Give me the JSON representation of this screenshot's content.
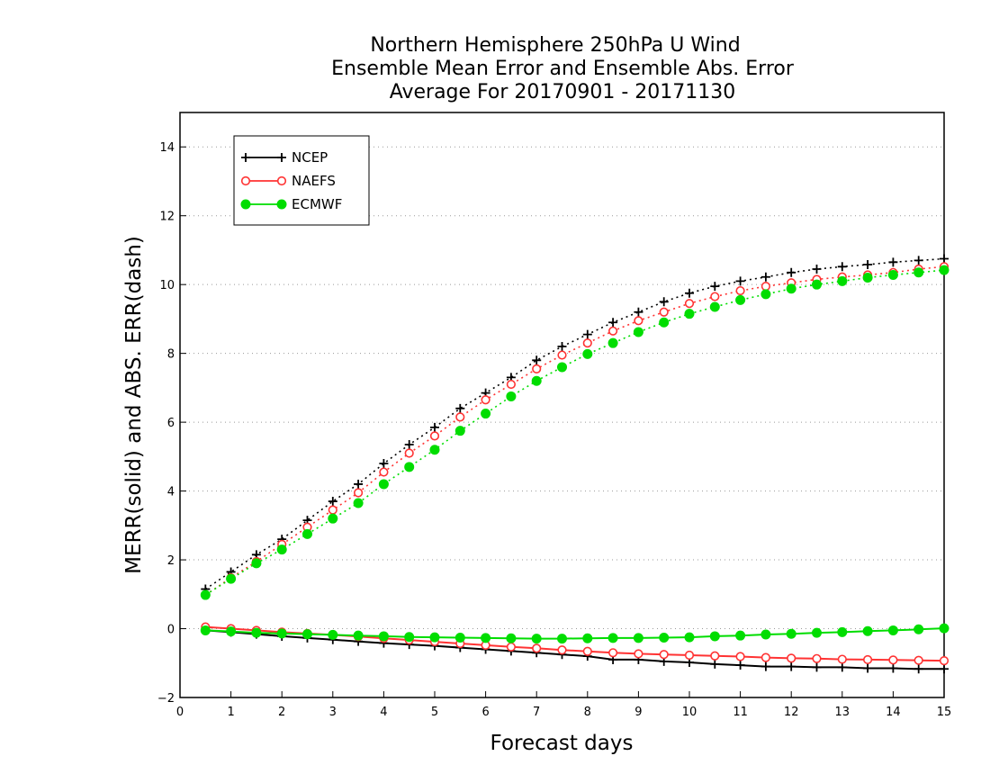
{
  "chart_data": {
    "type": "line",
    "title_lines": [
      "Northern Hemisphere 250hPa U Wind",
      "Ensemble Mean Error and Ensemble Abs. Error",
      "Average For 20170901 - 20171130"
    ],
    "xlabel": "Forecast days",
    "ylabel": "MERR(solid) and ABS. ERR(dash)",
    "xlim": [
      0,
      15
    ],
    "ylim": [
      -2,
      15
    ],
    "xticks": [
      0,
      1,
      2,
      3,
      4,
      5,
      6,
      7,
      8,
      9,
      10,
      11,
      12,
      13,
      14,
      15
    ],
    "yticks": [
      -2,
      0,
      2,
      4,
      6,
      8,
      10,
      12,
      14
    ],
    "grid": "horizontal dotted",
    "legend_placement": "top-left",
    "x": [
      0.5,
      1,
      1.5,
      2,
      2.5,
      3,
      3.5,
      4,
      4.5,
      5,
      5.5,
      6,
      6.5,
      7,
      7.5,
      8,
      8.5,
      9,
      9.5,
      10,
      10.5,
      11,
      11.5,
      12,
      12.5,
      13,
      13.5,
      14,
      14.5,
      15
    ],
    "series": [
      {
        "name": "NCEP",
        "color": "#000000",
        "marker": "plus",
        "merr": [
          -0.05,
          -0.1,
          -0.16,
          -0.22,
          -0.27,
          -0.32,
          -0.37,
          -0.42,
          -0.46,
          -0.5,
          -0.55,
          -0.6,
          -0.65,
          -0.7,
          -0.75,
          -0.8,
          -0.9,
          -0.9,
          -0.95,
          -0.98,
          -1.03,
          -1.06,
          -1.1,
          -1.1,
          -1.12,
          -1.12,
          -1.15,
          -1.15,
          -1.17,
          -1.17
        ],
        "abs_err": [
          1.15,
          1.65,
          2.15,
          2.6,
          3.15,
          3.7,
          4.2,
          4.8,
          5.35,
          5.85,
          6.4,
          6.85,
          7.3,
          7.8,
          8.2,
          8.55,
          8.9,
          9.2,
          9.5,
          9.75,
          9.95,
          10.1,
          10.22,
          10.35,
          10.45,
          10.52,
          10.58,
          10.65,
          10.7,
          10.75
        ]
      },
      {
        "name": "NAEFS",
        "color": "#ff3333",
        "marker": "open-circle",
        "merr": [
          0.05,
          0.0,
          -0.05,
          -0.1,
          -0.14,
          -0.18,
          -0.23,
          -0.28,
          -0.33,
          -0.38,
          -0.43,
          -0.48,
          -0.53,
          -0.57,
          -0.62,
          -0.66,
          -0.7,
          -0.73,
          -0.75,
          -0.77,
          -0.79,
          -0.81,
          -0.84,
          -0.86,
          -0.87,
          -0.89,
          -0.9,
          -0.91,
          -0.92,
          -0.93
        ],
        "abs_err": [
          0.98,
          1.48,
          1.95,
          2.45,
          2.95,
          3.45,
          3.95,
          4.55,
          5.1,
          5.6,
          6.15,
          6.65,
          7.1,
          7.55,
          7.95,
          8.3,
          8.65,
          8.95,
          9.2,
          9.45,
          9.65,
          9.82,
          9.95,
          10.05,
          10.15,
          10.22,
          10.28,
          10.35,
          10.45,
          10.52
        ]
      },
      {
        "name": "ECMWF",
        "color": "#00dd00",
        "marker": "filled-circle",
        "merr": [
          -0.05,
          -0.08,
          -0.12,
          -0.14,
          -0.16,
          -0.18,
          -0.2,
          -0.22,
          -0.24,
          -0.25,
          -0.26,
          -0.27,
          -0.28,
          -0.29,
          -0.29,
          -0.28,
          -0.27,
          -0.27,
          -0.26,
          -0.25,
          -0.22,
          -0.2,
          -0.17,
          -0.15,
          -0.12,
          -0.1,
          -0.07,
          -0.05,
          -0.02,
          0.01
        ],
        "abs_err": [
          0.98,
          1.45,
          1.9,
          2.3,
          2.75,
          3.2,
          3.65,
          4.2,
          4.7,
          5.2,
          5.75,
          6.25,
          6.75,
          7.2,
          7.6,
          7.98,
          8.3,
          8.62,
          8.9,
          9.15,
          9.35,
          9.55,
          9.72,
          9.88,
          10.0,
          10.1,
          10.2,
          10.28,
          10.35,
          10.42
        ]
      }
    ]
  }
}
